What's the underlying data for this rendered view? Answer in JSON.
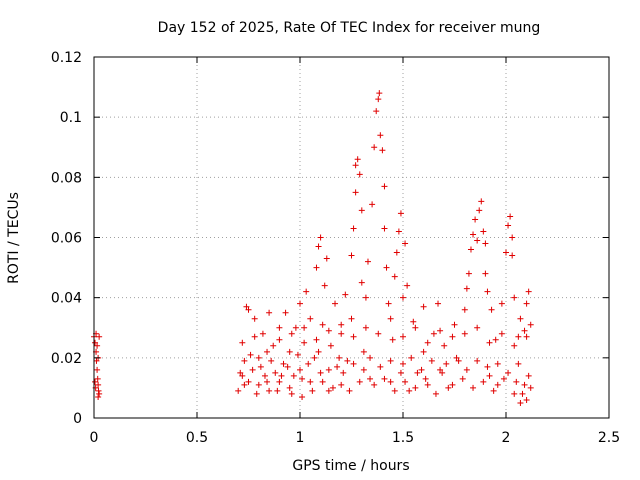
{
  "chart_data": {
    "type": "scatter",
    "title": "Day 152 of 2025, Rate Of TEC Index for receiver mung",
    "xlabel": "GPS time / hours",
    "ylabel": "ROTI / TECUs",
    "xlim": [
      0,
      2.5
    ],
    "ylim": [
      0,
      0.12
    ],
    "xticks": [
      0,
      0.5,
      1,
      1.5,
      2,
      2.5
    ],
    "xtick_labels": [
      "0",
      "0.5",
      "1",
      "1.5",
      "2",
      "2.5"
    ],
    "yticks": [
      0,
      0.02,
      0.04,
      0.06,
      0.08,
      0.1,
      0.12
    ],
    "ytick_labels": [
      "0",
      "0.02",
      "0.04",
      "0.06",
      "0.08",
      "0.1",
      "0.12"
    ],
    "grid": true,
    "marker": "+",
    "color": "#e00000",
    "series": [
      {
        "name": "ROTI",
        "points": [
          [
            0.0,
            0.027
          ],
          [
            0.005,
            0.025
          ],
          [
            0.01,
            0.022
          ],
          [
            0.012,
            0.019
          ],
          [
            0.015,
            0.016
          ],
          [
            0.018,
            0.013
          ],
          [
            0.02,
            0.011
          ],
          [
            0.022,
            0.009
          ],
          [
            0.025,
            0.008
          ],
          [
            0.01,
            0.028
          ],
          [
            0.015,
            0.024
          ],
          [
            0.02,
            0.02
          ],
          [
            0.005,
            0.012
          ],
          [
            0.008,
            0.01
          ],
          [
            0.02,
            0.007
          ],
          [
            0.025,
            0.027
          ],
          [
            0.7,
            0.009
          ],
          [
            0.72,
            0.014
          ],
          [
            0.73,
            0.019
          ],
          [
            0.74,
            0.037
          ],
          [
            0.75,
            0.036
          ],
          [
            0.75,
            0.012
          ],
          [
            0.77,
            0.016
          ],
          [
            0.78,
            0.033
          ],
          [
            0.8,
            0.02
          ],
          [
            0.8,
            0.011
          ],
          [
            0.82,
            0.028
          ],
          [
            0.83,
            0.014
          ],
          [
            0.85,
            0.035
          ],
          [
            0.85,
            0.009
          ],
          [
            0.87,
            0.024
          ],
          [
            0.88,
            0.015
          ],
          [
            0.9,
            0.03
          ],
          [
            0.9,
            0.012
          ],
          [
            0.92,
            0.018
          ],
          [
            0.93,
            0.035
          ],
          [
            0.95,
            0.01
          ],
          [
            0.95,
            0.022
          ],
          [
            0.97,
            0.014
          ],
          [
            0.98,
            0.03
          ],
          [
            1.0,
            0.038
          ],
          [
            1.0,
            0.016
          ],
          [
            1.01,
            0.007
          ],
          [
            1.02,
            0.025
          ],
          [
            1.03,
            0.042
          ],
          [
            1.05,
            0.012
          ],
          [
            1.05,
            0.033
          ],
          [
            1.07,
            0.02
          ],
          [
            1.08,
            0.05
          ],
          [
            1.09,
            0.057
          ],
          [
            1.1,
            0.06
          ],
          [
            1.1,
            0.015
          ],
          [
            1.11,
            0.031
          ],
          [
            1.12,
            0.044
          ],
          [
            1.13,
            0.053
          ],
          [
            1.14,
            0.009
          ],
          [
            1.15,
            0.024
          ],
          [
            1.17,
            0.038
          ],
          [
            1.18,
            0.017
          ],
          [
            1.2,
            0.028
          ],
          [
            1.2,
            0.011
          ],
          [
            1.22,
            0.041
          ],
          [
            1.23,
            0.019
          ],
          [
            1.25,
            0.054
          ],
          [
            1.25,
            0.033
          ],
          [
            1.26,
            0.063
          ],
          [
            1.27,
            0.075
          ],
          [
            1.27,
            0.084
          ],
          [
            1.28,
            0.086
          ],
          [
            1.29,
            0.081
          ],
          [
            1.3,
            0.045
          ],
          [
            1.3,
            0.069
          ],
          [
            1.31,
            0.022
          ],
          [
            1.32,
            0.04
          ],
          [
            1.33,
            0.052
          ],
          [
            1.34,
            0.013
          ],
          [
            1.35,
            0.071
          ],
          [
            1.36,
            0.09
          ],
          [
            1.37,
            0.102
          ],
          [
            1.38,
            0.106
          ],
          [
            1.385,
            0.108
          ],
          [
            1.39,
            0.094
          ],
          [
            1.4,
            0.089
          ],
          [
            1.41,
            0.077
          ],
          [
            1.41,
            0.063
          ],
          [
            1.42,
            0.05
          ],
          [
            1.43,
            0.038
          ],
          [
            1.44,
            0.012
          ],
          [
            1.45,
            0.026
          ],
          [
            1.46,
            0.047
          ],
          [
            1.47,
            0.055
          ],
          [
            1.48,
            0.062
          ],
          [
            1.49,
            0.068
          ],
          [
            1.5,
            0.04
          ],
          [
            1.5,
            0.018
          ],
          [
            1.51,
            0.058
          ],
          [
            1.52,
            0.044
          ],
          [
            1.53,
            0.009
          ],
          [
            1.55,
            0.032
          ],
          [
            1.57,
            0.015
          ],
          [
            1.6,
            0.037
          ],
          [
            1.6,
            0.022
          ],
          [
            1.62,
            0.011
          ],
          [
            1.65,
            0.028
          ],
          [
            1.67,
            0.038
          ],
          [
            1.68,
            0.016
          ],
          [
            1.7,
            0.024
          ],
          [
            1.72,
            0.01
          ],
          [
            1.75,
            0.031
          ],
          [
            1.77,
            0.019
          ],
          [
            1.8,
            0.036
          ],
          [
            1.81,
            0.043
          ],
          [
            1.82,
            0.048
          ],
          [
            1.83,
            0.056
          ],
          [
            1.84,
            0.061
          ],
          [
            1.85,
            0.066
          ],
          [
            1.86,
            0.059
          ],
          [
            1.87,
            0.069
          ],
          [
            1.88,
            0.072
          ],
          [
            1.89,
            0.062
          ],
          [
            1.9,
            0.058
          ],
          [
            1.9,
            0.048
          ],
          [
            1.91,
            0.042
          ],
          [
            1.92,
            0.014
          ],
          [
            1.93,
            0.036
          ],
          [
            1.95,
            0.026
          ],
          [
            1.96,
            0.011
          ],
          [
            1.98,
            0.038
          ],
          [
            2.0,
            0.055
          ],
          [
            2.01,
            0.064
          ],
          [
            2.02,
            0.067
          ],
          [
            2.03,
            0.06
          ],
          [
            2.03,
            0.054
          ],
          [
            2.04,
            0.04
          ],
          [
            2.05,
            0.012
          ],
          [
            2.06,
            0.027
          ],
          [
            2.07,
            0.033
          ],
          [
            2.08,
            0.008
          ],
          [
            2.09,
            0.029
          ],
          [
            2.1,
            0.038
          ],
          [
            2.11,
            0.042
          ],
          [
            2.12,
            0.01
          ],
          [
            2.12,
            0.031
          ],
          [
            0.71,
            0.015
          ],
          [
            0.73,
            0.011
          ],
          [
            0.76,
            0.021
          ],
          [
            0.79,
            0.008
          ],
          [
            0.81,
            0.017
          ],
          [
            0.84,
            0.012
          ],
          [
            0.86,
            0.019
          ],
          [
            0.89,
            0.009
          ],
          [
            0.91,
            0.014
          ],
          [
            0.94,
            0.017
          ],
          [
            0.96,
            0.008
          ],
          [
            0.99,
            0.021
          ],
          [
            1.01,
            0.013
          ],
          [
            1.04,
            0.018
          ],
          [
            1.06,
            0.009
          ],
          [
            1.09,
            0.022
          ],
          [
            1.11,
            0.012
          ],
          [
            1.14,
            0.016
          ],
          [
            1.16,
            0.01
          ],
          [
            1.19,
            0.02
          ],
          [
            1.21,
            0.015
          ],
          [
            1.24,
            0.009
          ],
          [
            1.26,
            0.018
          ],
          [
            1.29,
            0.012
          ],
          [
            1.31,
            0.016
          ],
          [
            1.34,
            0.02
          ],
          [
            1.36,
            0.011
          ],
          [
            1.39,
            0.017
          ],
          [
            1.41,
            0.013
          ],
          [
            1.44,
            0.019
          ],
          [
            1.46,
            0.009
          ],
          [
            1.49,
            0.015
          ],
          [
            1.51,
            0.012
          ],
          [
            1.54,
            0.02
          ],
          [
            1.56,
            0.01
          ],
          [
            1.59,
            0.016
          ],
          [
            1.61,
            0.013
          ],
          [
            1.64,
            0.019
          ],
          [
            1.66,
            0.008
          ],
          [
            1.69,
            0.015
          ],
          [
            1.71,
            0.018
          ],
          [
            1.74,
            0.011
          ],
          [
            1.76,
            0.02
          ],
          [
            1.79,
            0.013
          ],
          [
            1.81,
            0.016
          ],
          [
            1.84,
            0.01
          ],
          [
            1.86,
            0.019
          ],
          [
            1.89,
            0.012
          ],
          [
            1.91,
            0.017
          ],
          [
            1.94,
            0.009
          ],
          [
            1.96,
            0.018
          ],
          [
            1.99,
            0.013
          ],
          [
            2.01,
            0.015
          ],
          [
            2.04,
            0.008
          ],
          [
            2.06,
            0.018
          ],
          [
            2.09,
            0.011
          ],
          [
            2.11,
            0.014
          ],
          [
            2.07,
            0.005
          ],
          [
            2.1,
            0.006
          ],
          [
            0.72,
            0.025
          ],
          [
            0.78,
            0.027
          ],
          [
            0.84,
            0.022
          ],
          [
            0.9,
            0.026
          ],
          [
            0.96,
            0.028
          ],
          [
            1.02,
            0.03
          ],
          [
            1.08,
            0.026
          ],
          [
            1.14,
            0.029
          ],
          [
            1.2,
            0.031
          ],
          [
            1.26,
            0.027
          ],
          [
            1.32,
            0.03
          ],
          [
            1.38,
            0.028
          ],
          [
            1.44,
            0.033
          ],
          [
            1.5,
            0.027
          ],
          [
            1.56,
            0.03
          ],
          [
            1.62,
            0.025
          ],
          [
            1.68,
            0.029
          ],
          [
            1.74,
            0.027
          ],
          [
            1.8,
            0.028
          ],
          [
            1.86,
            0.03
          ],
          [
            1.92,
            0.025
          ],
          [
            1.98,
            0.028
          ],
          [
            2.04,
            0.024
          ],
          [
            2.1,
            0.027
          ]
        ]
      }
    ]
  }
}
